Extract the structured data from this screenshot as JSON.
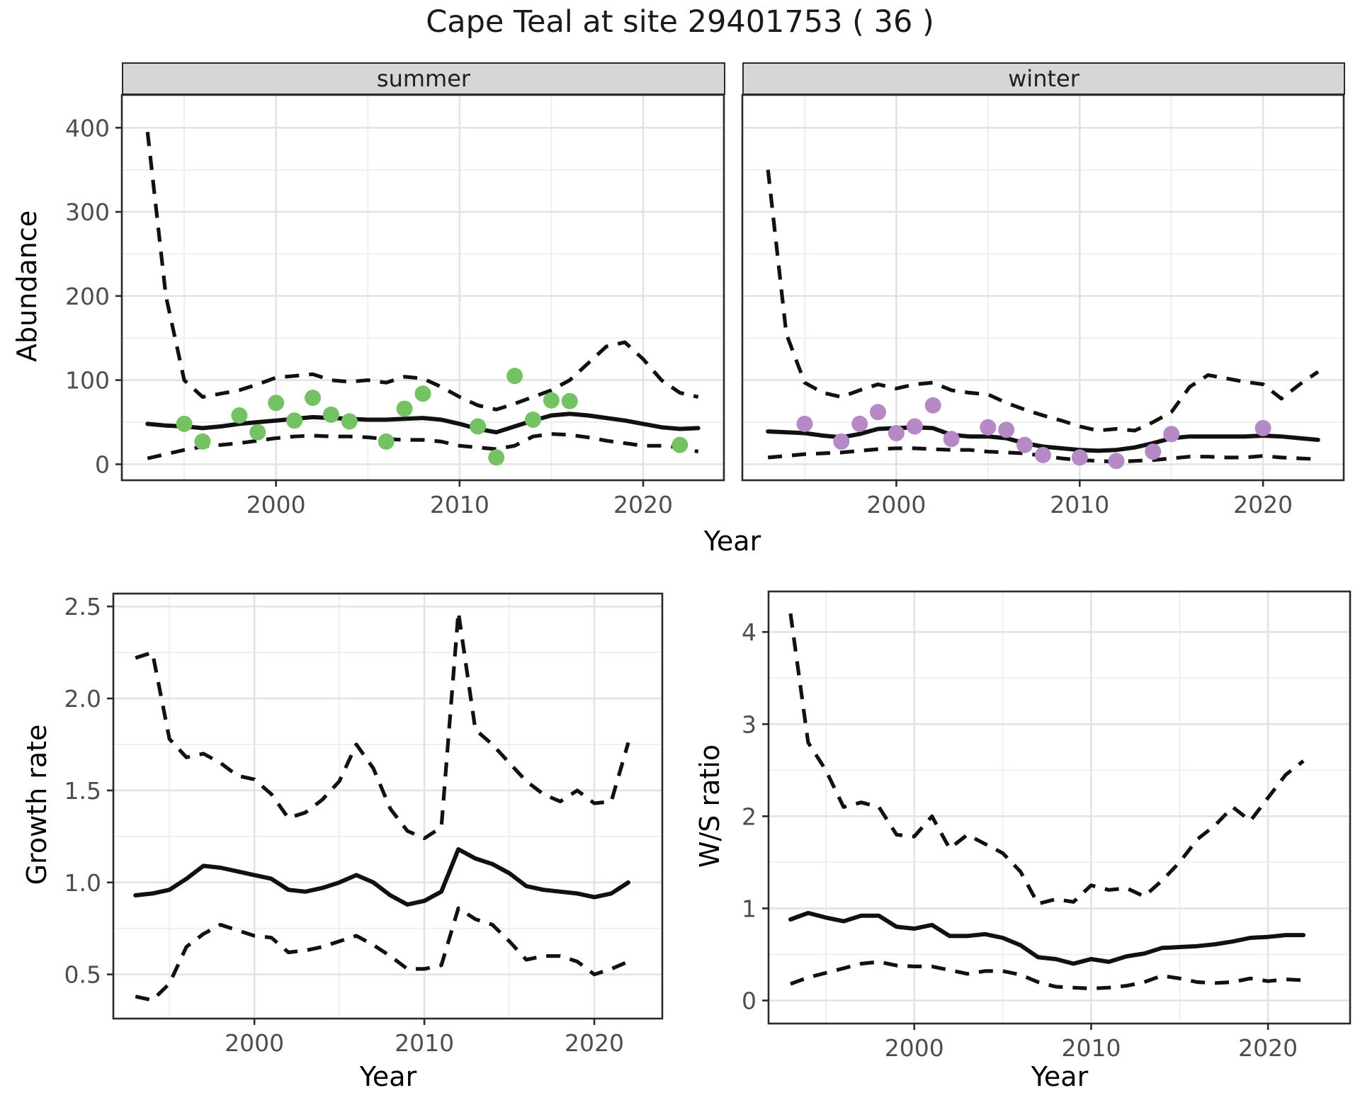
{
  "title": "Cape Teal at site 29401753 ( 36 )",
  "colors": {
    "summer_points": "#74c264",
    "winter_points": "#b588c6",
    "line": "#111111",
    "grid_major": "#e3e3e3",
    "grid_minor": "#efefef",
    "panel_border": "#2b2b2b",
    "strip_bg": "#d6d6d6",
    "tick_text": "#4d4d4d"
  },
  "chart_data": {
    "type": "line",
    "title": "Cape Teal at site 29401753 ( 36 )",
    "facet_row_label": "Abundance vs Year, faceted by season; dashed lines are confidence bounds around solid fitted line; dots are observed counts",
    "panels": [
      {
        "id": "summer",
        "strip_label": "summer",
        "xlabel": "Year",
        "ylabel": "Abundance",
        "xlim": [
          1991.6,
          2024.4
        ],
        "ylim": [
          -19,
          439
        ],
        "x_ticks": [
          {
            "v": 2000,
            "label": "2000"
          },
          {
            "v": 2010,
            "label": "2010"
          },
          {
            "v": 2020,
            "label": "2020"
          }
        ],
        "x_minor": [
          1995,
          2005,
          2015
        ],
        "y_ticks": [
          {
            "v": 0,
            "label": "0"
          },
          {
            "v": 100,
            "label": "100"
          },
          {
            "v": 200,
            "label": "200"
          },
          {
            "v": 300,
            "label": "300"
          },
          {
            "v": 400,
            "label": "400"
          }
        ],
        "y_minor": [
          50,
          150,
          250,
          350
        ],
        "years": [
          1993,
          1994,
          1995,
          1996,
          1997,
          1998,
          1999,
          2000,
          2001,
          2002,
          2003,
          2004,
          2005,
          2006,
          2007,
          2008,
          2009,
          2010,
          2011,
          2012,
          2013,
          2014,
          2015,
          2016,
          2017,
          2018,
          2019,
          2020,
          2021,
          2022,
          2023
        ],
        "fit": [
          48,
          46,
          45,
          43,
          45,
          48,
          50,
          52,
          54,
          56,
          55,
          54,
          53,
          53,
          54,
          55,
          53,
          48,
          42,
          38,
          45,
          52,
          58,
          60,
          58,
          55,
          52,
          48,
          44,
          42,
          43
        ],
        "upper": [
          395,
          200,
          100,
          80,
          84,
          88,
          95,
          103,
          105,
          107,
          100,
          98,
          100,
          97,
          104,
          102,
          92,
          80,
          70,
          65,
          72,
          80,
          88,
          100,
          120,
          140,
          145,
          125,
          100,
          85,
          80
        ],
        "lower": [
          7,
          12,
          17,
          21,
          23,
          25,
          28,
          31,
          33,
          34,
          33,
          33,
          32,
          30,
          29,
          29,
          27,
          22,
          20,
          18,
          22,
          33,
          36,
          35,
          32,
          28,
          25,
          22,
          22,
          20,
          15
        ],
        "points_color": "#74c264",
        "points": [
          [
            1995,
            48
          ],
          [
            1996,
            27
          ],
          [
            1998,
            58
          ],
          [
            1999,
            38
          ],
          [
            2000,
            73
          ],
          [
            2001,
            52
          ],
          [
            2002,
            79
          ],
          [
            2003,
            59
          ],
          [
            2004,
            51
          ],
          [
            2006,
            27
          ],
          [
            2007,
            66
          ],
          [
            2008,
            84
          ],
          [
            2011,
            45
          ],
          [
            2012,
            8
          ],
          [
            2013,
            105
          ],
          [
            2014,
            53
          ],
          [
            2015,
            76
          ],
          [
            2016,
            75
          ],
          [
            2022,
            23
          ]
        ]
      },
      {
        "id": "winter",
        "strip_label": "winter",
        "xlabel": "Year",
        "ylabel": "Abundance",
        "xlim": [
          1991.6,
          2024.4
        ],
        "ylim": [
          -19,
          439
        ],
        "x_ticks": [
          {
            "v": 2000,
            "label": "2000"
          },
          {
            "v": 2010,
            "label": "2010"
          },
          {
            "v": 2020,
            "label": "2020"
          }
        ],
        "x_minor": [
          1995,
          2005,
          2015
        ],
        "y_ticks": [
          {
            "v": 0,
            "label": "0"
          },
          {
            "v": 100,
            "label": "100"
          },
          {
            "v": 200,
            "label": "200"
          },
          {
            "v": 300,
            "label": "300"
          },
          {
            "v": 400,
            "label": "400"
          }
        ],
        "y_minor": [
          50,
          150,
          250,
          350
        ],
        "years": [
          1993,
          1994,
          1995,
          1996,
          1997,
          1998,
          1999,
          2000,
          2001,
          2002,
          2003,
          2004,
          2005,
          2006,
          2007,
          2008,
          2009,
          2010,
          2011,
          2012,
          2013,
          2014,
          2015,
          2016,
          2017,
          2018,
          2019,
          2020,
          2021,
          2022,
          2023
        ],
        "fit": [
          39,
          38,
          37,
          34,
          32,
          36,
          42,
          43,
          44,
          43,
          35,
          33,
          33,
          31,
          25,
          21,
          19,
          17,
          16,
          17,
          20,
          25,
          31,
          33,
          33,
          33,
          33,
          34,
          33,
          31,
          29
        ],
        "upper": [
          350,
          155,
          97,
          85,
          80,
          88,
          95,
          90,
          95,
          97,
          88,
          85,
          83,
          73,
          65,
          58,
          52,
          45,
          40,
          42,
          40,
          50,
          62,
          92,
          106,
          102,
          98,
          95,
          78,
          95,
          110
        ],
        "lower": [
          8,
          10,
          12,
          13,
          14,
          16,
          18,
          19,
          19,
          18,
          17,
          17,
          15,
          14,
          13,
          10,
          7,
          5,
          4,
          3,
          4,
          5,
          7,
          9,
          9,
          8,
          8,
          10,
          8,
          7,
          6
        ],
        "points_color": "#b588c6",
        "points": [
          [
            1995,
            48
          ],
          [
            1997,
            27
          ],
          [
            1998,
            48
          ],
          [
            1999,
            62
          ],
          [
            2000,
            37
          ],
          [
            2001,
            45
          ],
          [
            2002,
            70
          ],
          [
            2003,
            30
          ],
          [
            2005,
            44
          ],
          [
            2006,
            41
          ],
          [
            2007,
            23
          ],
          [
            2008,
            11
          ],
          [
            2010,
            8
          ],
          [
            2012,
            4
          ],
          [
            2014,
            15
          ],
          [
            2015,
            36
          ],
          [
            2020,
            43
          ]
        ]
      },
      {
        "id": "growth",
        "strip_label": "",
        "xlabel": "Year",
        "ylabel": "Growth rate",
        "xlim": [
          1991.7,
          2024.0
        ],
        "ylim": [
          0.26,
          2.57
        ],
        "x_ticks": [
          {
            "v": 2000,
            "label": "2000"
          },
          {
            "v": 2010,
            "label": "2010"
          },
          {
            "v": 2020,
            "label": "2020"
          }
        ],
        "x_minor": [
          1995,
          2005,
          2015
        ],
        "y_ticks": [
          {
            "v": 0.5,
            "label": "0.5"
          },
          {
            "v": 1.0,
            "label": "1.0"
          },
          {
            "v": 1.5,
            "label": "1.5"
          },
          {
            "v": 2.0,
            "label": "2.0"
          },
          {
            "v": 2.5,
            "label": "2.5"
          }
        ],
        "y_minor": [
          0.75,
          1.25,
          1.75,
          2.25
        ],
        "years": [
          1993,
          1994,
          1995,
          1996,
          1997,
          1998,
          1999,
          2000,
          2001,
          2002,
          2003,
          2004,
          2005,
          2006,
          2007,
          2008,
          2009,
          2010,
          2011,
          2012,
          2013,
          2014,
          2015,
          2016,
          2017,
          2018,
          2019,
          2020,
          2021,
          2022
        ],
        "fit": [
          0.93,
          0.94,
          0.96,
          1.02,
          1.09,
          1.08,
          1.06,
          1.04,
          1.02,
          0.96,
          0.95,
          0.97,
          1.0,
          1.04,
          1.0,
          0.93,
          0.88,
          0.9,
          0.95,
          1.18,
          1.13,
          1.1,
          1.05,
          0.98,
          0.96,
          0.95,
          0.94,
          0.92,
          0.94,
          1.0
        ],
        "upper": [
          2.22,
          2.25,
          1.78,
          1.68,
          1.7,
          1.65,
          1.58,
          1.56,
          1.48,
          1.35,
          1.38,
          1.45,
          1.55,
          1.75,
          1.62,
          1.4,
          1.28,
          1.24,
          1.3,
          2.47,
          1.83,
          1.75,
          1.65,
          1.55,
          1.48,
          1.44,
          1.5,
          1.43,
          1.44,
          1.76
        ],
        "lower": [
          0.38,
          0.36,
          0.45,
          0.65,
          0.72,
          0.77,
          0.74,
          0.71,
          0.7,
          0.62,
          0.63,
          0.65,
          0.68,
          0.71,
          0.66,
          0.6,
          0.53,
          0.53,
          0.55,
          0.86,
          0.8,
          0.77,
          0.68,
          0.58,
          0.6,
          0.6,
          0.57,
          0.5,
          0.53,
          0.57
        ],
        "points_color": null,
        "points": []
      },
      {
        "id": "ws",
        "strip_label": "",
        "xlabel": "Year",
        "ylabel": "W/S ratio",
        "xlim": [
          1991.76,
          2024.64
        ],
        "ylim": [
          -0.25,
          4.44
        ],
        "x_ticks": [
          {
            "v": 2000,
            "label": "2000"
          },
          {
            "v": 2010,
            "label": "2010"
          },
          {
            "v": 2020,
            "label": "2020"
          }
        ],
        "x_minor": [
          1995,
          2005,
          2015
        ],
        "y_ticks": [
          {
            "v": 0,
            "label": "0"
          },
          {
            "v": 1,
            "label": "1"
          },
          {
            "v": 2,
            "label": "2"
          },
          {
            "v": 3,
            "label": "3"
          },
          {
            "v": 4,
            "label": "4"
          }
        ],
        "y_minor": [
          0.5,
          1.5,
          2.5,
          3.5
        ],
        "years": [
          1993,
          1994,
          1995,
          1996,
          1997,
          1998,
          1999,
          2000,
          2001,
          2002,
          2003,
          2004,
          2005,
          2006,
          2007,
          2008,
          2009,
          2010,
          2011,
          2012,
          2013,
          2014,
          2015,
          2016,
          2017,
          2018,
          2019,
          2020,
          2021,
          2022
        ],
        "fit": [
          0.88,
          0.95,
          0.9,
          0.86,
          0.92,
          0.92,
          0.8,
          0.78,
          0.82,
          0.7,
          0.7,
          0.72,
          0.68,
          0.6,
          0.47,
          0.45,
          0.4,
          0.45,
          0.42,
          0.48,
          0.51,
          0.57,
          0.58,
          0.59,
          0.61,
          0.64,
          0.68,
          0.69,
          0.71,
          0.71
        ],
        "upper": [
          4.2,
          2.8,
          2.5,
          2.1,
          2.15,
          2.1,
          1.8,
          1.78,
          2.0,
          1.65,
          1.8,
          1.7,
          1.6,
          1.4,
          1.05,
          1.1,
          1.07,
          1.25,
          1.2,
          1.22,
          1.13,
          1.3,
          1.5,
          1.75,
          1.9,
          2.1,
          1.95,
          2.2,
          2.45,
          2.6
        ],
        "lower": [
          0.18,
          0.25,
          0.3,
          0.35,
          0.4,
          0.42,
          0.38,
          0.37,
          0.37,
          0.33,
          0.29,
          0.32,
          0.32,
          0.28,
          0.2,
          0.15,
          0.14,
          0.13,
          0.14,
          0.16,
          0.2,
          0.27,
          0.24,
          0.2,
          0.19,
          0.2,
          0.24,
          0.21,
          0.23,
          0.22
        ],
        "points_color": null,
        "points": []
      }
    ]
  }
}
